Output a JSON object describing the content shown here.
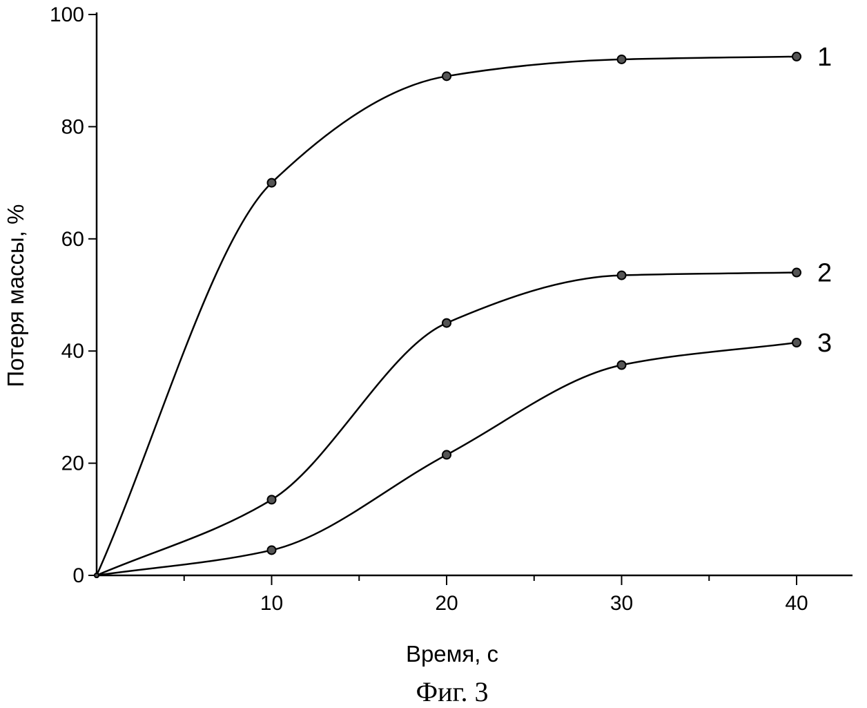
{
  "chart_data": {
    "type": "line",
    "xlabel": "Время, с",
    "ylabel": "Потеря массы, %",
    "caption": "Фиг. 3",
    "xlim": [
      0,
      43
    ],
    "ylim": [
      0,
      100
    ],
    "x_ticks": [
      10,
      20,
      30,
      40
    ],
    "y_ticks": [
      0,
      20,
      40,
      60,
      80,
      100
    ],
    "grid": false,
    "series": [
      {
        "name": "1",
        "x": [
          0,
          10,
          20,
          30,
          40
        ],
        "y": [
          0,
          70,
          89,
          92,
          92.5
        ]
      },
      {
        "name": "2",
        "x": [
          0,
          10,
          20,
          30,
          40
        ],
        "y": [
          0,
          13.5,
          45,
          53.5,
          54
        ]
      },
      {
        "name": "3",
        "x": [
          0,
          10,
          20,
          30,
          40
        ],
        "y": [
          0,
          4.5,
          21.5,
          37.5,
          41.5
        ]
      }
    ]
  }
}
